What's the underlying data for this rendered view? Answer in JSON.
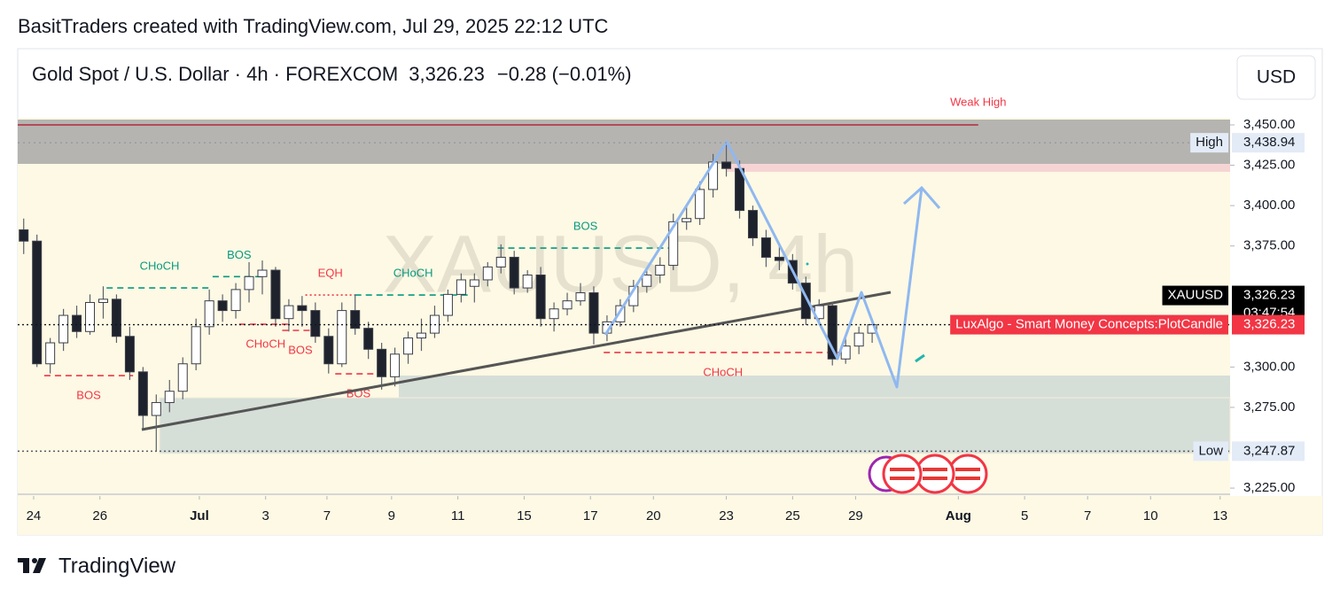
{
  "header": {
    "attribution": "BasitTraders created with TradingView.com, Jul 29, 2025 22:12 UTC"
  },
  "footer": {
    "brand": "TradingView"
  },
  "chart_data": {
    "type": "candlestick",
    "symbol": "Gold Spot / U.S. Dollar · 4h · FOREXCOM",
    "price": "3,326.23",
    "change": "−0.28 (−0.01%)",
    "currency": "USD",
    "watermark": "XAUUSD, 4h",
    "up_color": "#ffffff",
    "down_color": "#1e222d",
    "xlim": [
      -0.48,
      36.1
    ],
    "ylim": [
      3214.6,
      3497.2
    ],
    "xticks": [
      {
        "value": 0,
        "label": "24"
      },
      {
        "value": 2,
        "label": "26"
      },
      {
        "value": 5,
        "label": "Jul"
      },
      {
        "value": 7,
        "label": "3"
      },
      {
        "value": 8.85,
        "label": "7"
      },
      {
        "value": 10.8,
        "label": "9"
      },
      {
        "value": 12.8,
        "label": "11"
      },
      {
        "value": 14.8,
        "label": "15"
      },
      {
        "value": 16.8,
        "label": "17"
      },
      {
        "value": 18.7,
        "label": "20"
      },
      {
        "value": 20.9,
        "label": "23"
      },
      {
        "value": 22.9,
        "label": "25"
      },
      {
        "value": 24.8,
        "label": "29"
      },
      {
        "value": 27.9,
        "label": "Aug"
      },
      {
        "value": 29.9,
        "label": "5"
      },
      {
        "value": 31.8,
        "label": "7"
      },
      {
        "value": 33.7,
        "label": "10"
      },
      {
        "value": 35.8,
        "label": "13"
      }
    ],
    "yticks": [
      {
        "value": 3450,
        "label": "3,450.00"
      },
      {
        "value": 3425,
        "label": "3,425.00"
      },
      {
        "value": 3400,
        "label": "3,400.00"
      },
      {
        "value": 3375,
        "label": "3,375.00"
      },
      {
        "value": 3300,
        "label": "3,300.00"
      },
      {
        "value": 3275,
        "label": "3,275.00"
      },
      {
        "value": 3225,
        "label": "3,225.00"
      }
    ],
    "x": [
      -0.3,
      0.1,
      0.5,
      0.9,
      1.3,
      1.7,
      2.1,
      2.5,
      2.9,
      3.3,
      3.7,
      4.1,
      4.5,
      4.9,
      5.3,
      5.7,
      6.1,
      6.5,
      6.9,
      7.3,
      7.7,
      8.1,
      8.5,
      8.9,
      9.3,
      9.7,
      10.1,
      10.5,
      10.9,
      11.3,
      11.7,
      12.1,
      12.5,
      12.9,
      13.3,
      13.7,
      14.1,
      14.5,
      14.9,
      15.3,
      15.7,
      16.1,
      16.5,
      16.9,
      17.3,
      17.7,
      18.1,
      18.5,
      18.9,
      19.3,
      19.7,
      20.1,
      20.5,
      20.9,
      21.3,
      21.7,
      22.1,
      22.5,
      22.9,
      23.3,
      23.7,
      24.1,
      24.5,
      24.9,
      25.3
    ],
    "open": [
      3385,
      3378,
      3302,
      3315,
      3332,
      3322,
      3340,
      3342,
      3319,
      3297,
      3270,
      3278,
      3285,
      3302,
      3325,
      3341,
      3335,
      3348,
      3356,
      3360,
      3330,
      3338,
      3335,
      3319,
      3302,
      3335,
      3324,
      3311,
      3294,
      3308,
      3318,
      3321,
      3332,
      3345,
      3350,
      3354,
      3362,
      3368,
      3349,
      3357,
      3330,
      3336,
      3341,
      3346,
      3321,
      3328,
      3338,
      3350,
      3357,
      3363,
      3390,
      3392,
      3410,
      3427,
      3423,
      3397,
      3380,
      3368,
      3366,
      3352,
      3330,
      3338,
      3305,
      3313,
      3321
    ],
    "high": [
      3392,
      3382,
      3318,
      3336,
      3338,
      3345,
      3350,
      3345,
      3325,
      3300,
      3283,
      3292,
      3306,
      3330,
      3348,
      3345,
      3352,
      3365,
      3366,
      3362,
      3342,
      3344,
      3340,
      3324,
      3340,
      3345,
      3328,
      3315,
      3312,
      3322,
      3330,
      3338,
      3348,
      3358,
      3358,
      3365,
      3376,
      3372,
      3360,
      3362,
      3340,
      3346,
      3352,
      3350,
      3332,
      3342,
      3354,
      3360,
      3368,
      3395,
      3400,
      3415,
      3432,
      3438.94,
      3428,
      3400,
      3385,
      3375,
      3370,
      3356,
      3342,
      3340,
      3318,
      3325,
      3330
    ],
    "low": [
      3370,
      3300,
      3296,
      3310,
      3318,
      3320,
      3330,
      3315,
      3292,
      3262,
      3247.87,
      3272,
      3280,
      3298,
      3320,
      3328,
      3330,
      3340,
      3345,
      3325,
      3322,
      3325,
      3315,
      3296,
      3300,
      3320,
      3305,
      3286,
      3288,
      3302,
      3310,
      3318,
      3328,
      3340,
      3340,
      3350,
      3358,
      3345,
      3346,
      3325,
      3322,
      3332,
      3338,
      3314,
      3316,
      3325,
      3334,
      3346,
      3352,
      3360,
      3385,
      3388,
      3405,
      3418,
      3392,
      3375,
      3362,
      3360,
      3348,
      3326,
      3326,
      3301,
      3302,
      3308,
      3315
    ],
    "close": [
      3378,
      3302,
      3315,
      3332,
      3322,
      3340,
      3342,
      3319,
      3297,
      3270,
      3278,
      3285,
      3302,
      3325,
      3341,
      3335,
      3348,
      3356,
      3360,
      3330,
      3338,
      3335,
      3319,
      3302,
      3335,
      3324,
      3311,
      3294,
      3308,
      3318,
      3321,
      3332,
      3345,
      3354,
      3354,
      3362,
      3368,
      3349,
      3357,
      3330,
      3336,
      3341,
      3346,
      3321,
      3328,
      3338,
      3350,
      3357,
      3363,
      3390,
      3392,
      3410,
      3427,
      3423,
      3397,
      3380,
      3368,
      3366,
      3352,
      3330,
      3338,
      3305,
      3313,
      3321,
      3326.23
    ],
    "structures": [
      {
        "label": "BOS",
        "price": 3294.7,
        "x_range": [
          0.32,
          3.0
        ],
        "color": "#f23645",
        "style": "dashed",
        "position": "below"
      },
      {
        "label": "CHoCH",
        "price": 3349,
        "x_range": [
          2.2,
          5.4
        ],
        "color": "#089981",
        "style": "dashed",
        "position": "above"
      },
      {
        "label": "BOS",
        "price": 3356,
        "x_range": [
          5.4,
          7.0
        ],
        "color": "#089981",
        "style": "dashed",
        "position": "above"
      },
      {
        "label": "CHoCH",
        "price": 3326.5,
        "x_range": [
          6.2,
          7.8
        ],
        "color": "#f23645",
        "style": "dashed",
        "position": "below"
      },
      {
        "label": "BOS",
        "price": 3322.7,
        "x_range": [
          7.5,
          8.6
        ],
        "color": "#f23645",
        "style": "dashed",
        "position": "below"
      },
      {
        "label": "EQH",
        "price": 3344.6,
        "x_range": [
          8.2,
          9.7
        ],
        "color": "#f23645",
        "style": "dotted",
        "position": "above"
      },
      {
        "label": "CHoCH",
        "price": 3344.6,
        "x_range": [
          9.7,
          13.2
        ],
        "color": "#089981",
        "style": "dashed",
        "position": "above"
      },
      {
        "label": "BOS",
        "price": 3295.8,
        "x_range": [
          9.1,
          10.5
        ],
        "color": "#f23645",
        "style": "dashed",
        "position": "below"
      },
      {
        "label": "BOS",
        "price": 3373.7,
        "x_range": [
          14.0,
          19.3
        ],
        "color": "#089981",
        "style": "dashed",
        "position": "above"
      },
      {
        "label": "CHoCH",
        "price": 3309,
        "x_range": [
          17.2,
          24.4
        ],
        "color": "#f23645",
        "style": "dashed",
        "position": "below"
      }
    ],
    "weak_high": {
      "label": "Weak High",
      "price": 3450,
      "x_range": [
        -0.48,
        28.5
      ],
      "color": "#b2293a"
    },
    "price_tags": [
      {
        "name": "High",
        "value": 3438.94,
        "label": "3,438.94",
        "color": "#e3ebf7",
        "text_color": "#131722"
      },
      {
        "name": "Low",
        "value": 3247.87,
        "label": "3,247.87",
        "color": "#e3ebf7",
        "text_color": "#131722"
      },
      {
        "name": "XAUUSD",
        "value": 3326.23,
        "label": "3,326.23",
        "countdown": "03:47:54",
        "color": "#000000",
        "text_color": "#ffffff"
      },
      {
        "name": "LuxAlgo - Smart Money Concepts:PlotCandle",
        "value": 3326.23,
        "label": "3,326.23",
        "color": "#f23645",
        "text_color": "#ffffff"
      }
    ]
  }
}
